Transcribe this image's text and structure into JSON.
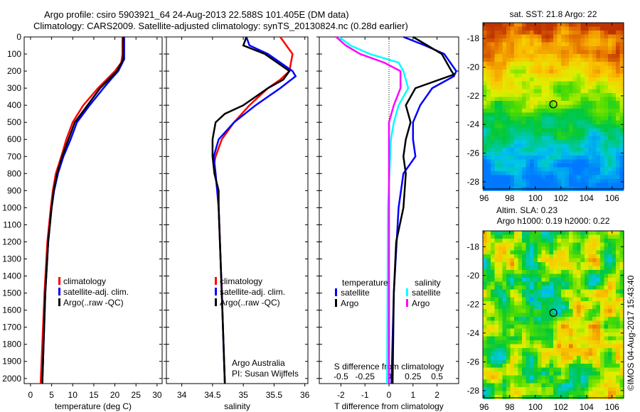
{
  "header": {
    "line1": "Argo profile: csiro 5903921_64 24-Aug-2013 22.588S 101.405E (DM data)",
    "line2": "Climatology: CARS2009. Satellite-adjusted climatology: synTS_20130824.nc (0.28d earlier)"
  },
  "credits": {
    "line1": "Argo Australia",
    "line2": "PI: Susan Wijffels",
    "stamp": "©IMOS 04-Aug-2017 15:43:40"
  },
  "colors": {
    "climatology": "#ff0000",
    "satellite": "#0000ff",
    "argo": "#000000",
    "sal_satellite": "#00ffff",
    "sal_argo": "#ff00ff"
  },
  "chart_data": [
    {
      "type": "line",
      "title": "",
      "xlabel": "temperature (deg C)",
      "ylabel": "",
      "xlim": [
        -1.5,
        31.2
      ],
      "ylim": [
        2030,
        0
      ],
      "xticks": [
        0,
        5,
        10,
        15,
        20,
        25,
        30
      ],
      "yticks": [
        0,
        100,
        200,
        300,
        400,
        500,
        600,
        700,
        800,
        900,
        1000,
        1100,
        1200,
        1300,
        1400,
        1500,
        1600,
        1700,
        1800,
        1900,
        2000
      ],
      "legend": [
        "climatology",
        "satellite-adj. clim.",
        "Argo(..raw -QC)"
      ],
      "series": [
        {
          "name": "climatology",
          "color": "#ff0000",
          "depth": [
            0,
            100,
            150,
            200,
            250,
            300,
            400,
            500,
            600,
            700,
            800,
            900,
            1000,
            1200,
            1500,
            1800,
            2030
          ],
          "values": [
            21.8,
            21.8,
            21.5,
            20,
            18,
            16,
            12.5,
            10,
            8.5,
            7.3,
            6,
            5.3,
            4.8,
            4,
            3.3,
            2.8,
            2.4
          ]
        },
        {
          "name": "satellite-adj. clim.",
          "color": "#0000ff",
          "depth": [
            0,
            130,
            200,
            250,
            300,
            400,
            500,
            600,
            700,
            800,
            900,
            1000,
            1200,
            1500,
            1800,
            2030
          ],
          "values": [
            22.2,
            22.2,
            20.8,
            19,
            17.3,
            14,
            11,
            9.5,
            7.8,
            6.5,
            5.6,
            5,
            4.2,
            3.5,
            3.1,
            2.8
          ]
        },
        {
          "name": "Argo(..raw -QC)",
          "color": "#000000",
          "depth": [
            0,
            130,
            200,
            300,
            400,
            500,
            600,
            700,
            800,
            900,
            1000,
            1200,
            1500,
            1800,
            2030
          ],
          "values": [
            22,
            22,
            20.5,
            16.5,
            13.5,
            10.5,
            9,
            7.5,
            6.3,
            5.5,
            5,
            4.2,
            3.5,
            3.1,
            2.8
          ]
        }
      ]
    },
    {
      "type": "line",
      "title": "",
      "xlabel": "salinity",
      "ylabel": "",
      "xlim": [
        33.75,
        36.05
      ],
      "ylim": [
        2030,
        0
      ],
      "xticks": [
        34,
        34.5,
        35,
        35.5,
        36
      ],
      "yticks": [
        0,
        100,
        200,
        300,
        400,
        500,
        600,
        700,
        800,
        900,
        1000,
        1100,
        1200,
        1300,
        1400,
        1500,
        1600,
        1700,
        1800,
        1900,
        2000
      ],
      "legend": [
        "climatology",
        "satellite-adj. clim.",
        "Argo(..raw -QC)"
      ],
      "series": [
        {
          "name": "climatology",
          "color": "#ff0000",
          "depth": [
            0,
            50,
            100,
            200,
            250,
            300,
            400,
            500,
            600,
            700,
            750,
            800,
            900,
            1000,
            1500,
            2030
          ],
          "values": [
            35.6,
            35.7,
            35.8,
            35.75,
            35.6,
            35.4,
            35.1,
            34.85,
            34.65,
            34.55,
            34.52,
            34.54,
            34.58,
            34.6,
            34.65,
            34.7
          ]
        },
        {
          "name": "satellite-adj. clim.",
          "color": "#0000ff",
          "depth": [
            0,
            50,
            100,
            200,
            230,
            300,
            400,
            500,
            600,
            700,
            800,
            1000,
            1500,
            2030
          ],
          "values": [
            35.05,
            35.1,
            35.4,
            35.8,
            35.85,
            35.6,
            35.2,
            34.85,
            34.6,
            34.52,
            34.55,
            34.6,
            34.65,
            34.7
          ]
        },
        {
          "name": "Argo(..raw -QC)",
          "color": "#000000",
          "depth": [
            0,
            50,
            100,
            200,
            250,
            300,
            400,
            450,
            500,
            600,
            700,
            800,
            900,
            1000,
            1500,
            2030
          ],
          "values": [
            35.05,
            35.0,
            35.35,
            35.75,
            35.65,
            35.4,
            35.0,
            34.7,
            34.55,
            34.5,
            34.5,
            34.53,
            34.6,
            34.6,
            34.65,
            34.7
          ]
        }
      ]
    },
    {
      "type": "line",
      "title": "",
      "xlabel": "T difference from climatology",
      "x2label": "S difference from climatology",
      "xlim": [
        -2.9,
        2.9
      ],
      "ylim": [
        2030,
        0
      ],
      "xticks": [
        -2,
        -1,
        0,
        1,
        2
      ],
      "x2ticks": [
        -0.5,
        -0.25,
        0,
        0.25,
        0.5
      ],
      "s_scale": 4,
      "yticks": [
        0,
        100,
        200,
        300,
        400,
        500,
        600,
        700,
        800,
        900,
        1000,
        1100,
        1200,
        1300,
        1400,
        1500,
        1600,
        1700,
        1800,
        1900,
        2000
      ],
      "legend_t_title": "temperature",
      "legend_s_title": "salinity",
      "legend": [
        "satellite",
        "Argo",
        "satellite",
        "Argo"
      ],
      "series": [
        {
          "name": "T satellite",
          "color": "#0000ff",
          "unit": "T",
          "depth": [
            0,
            50,
            100,
            200,
            230,
            300,
            400,
            500,
            600,
            700,
            800,
            1000,
            1500,
            2030
          ],
          "values": [
            0.6,
            1.5,
            2.3,
            2.8,
            2.7,
            1.8,
            1.3,
            1.0,
            1.0,
            1.1,
            0.6,
            0.4,
            0.2,
            0.1
          ]
        },
        {
          "name": "T Argo",
          "color": "#000000",
          "unit": "T",
          "depth": [
            0,
            50,
            100,
            200,
            220,
            300,
            400,
            500,
            600,
            700,
            800,
            1000,
            1200,
            1500,
            2030
          ],
          "values": [
            1,
            1.6,
            2.2,
            2.6,
            2.7,
            1.1,
            0.7,
            0.9,
            0.7,
            0.6,
            0.7,
            0.6,
            0.3,
            0.2,
            0.15
          ]
        },
        {
          "name": "S satellite",
          "color": "#00ffff",
          "unit": "S",
          "depth": [
            0,
            50,
            100,
            150,
            200,
            300,
            400,
            500,
            600,
            1000,
            2030
          ],
          "values": [
            -0.52,
            -0.4,
            -0.2,
            0.1,
            0.15,
            0.2,
            0.1,
            0.05,
            0.02,
            -0.01,
            -0.02
          ]
        },
        {
          "name": "S Argo",
          "color": "#ff00ff",
          "unit": "S",
          "depth": [
            0,
            50,
            100,
            150,
            200,
            300,
            400,
            500,
            600,
            1000,
            2030
          ],
          "values": [
            -0.55,
            -0.45,
            -0.3,
            -0.05,
            0.12,
            0.12,
            0.05,
            0,
            0,
            0,
            0
          ]
        }
      ]
    },
    {
      "type": "heatmap",
      "title": "sat. SST: 21.8 Argo: 22",
      "xlim": [
        95.9,
        106.9
      ],
      "ylim": [
        -16.9,
        -28.5
      ],
      "xticks": [
        96,
        98,
        100,
        102,
        104,
        106
      ],
      "yticks": [
        -18,
        -20,
        -22,
        -24,
        -26,
        -28
      ],
      "marker": [
        101.405,
        -22.588
      ]
    },
    {
      "type": "heatmap",
      "title": "Altim. SLA: 0.23",
      "subtitle": "Argo h1000: 0.19 h2000: 0.22",
      "xlim": [
        95.9,
        106.9
      ],
      "ylim": [
        -16.9,
        -28.5
      ],
      "xticks": [
        96,
        98,
        100,
        102,
        104,
        106
      ],
      "yticks": [
        -18,
        -20,
        -22,
        -24,
        -26,
        -28
      ],
      "marker": [
        101.405,
        -22.588
      ]
    }
  ]
}
